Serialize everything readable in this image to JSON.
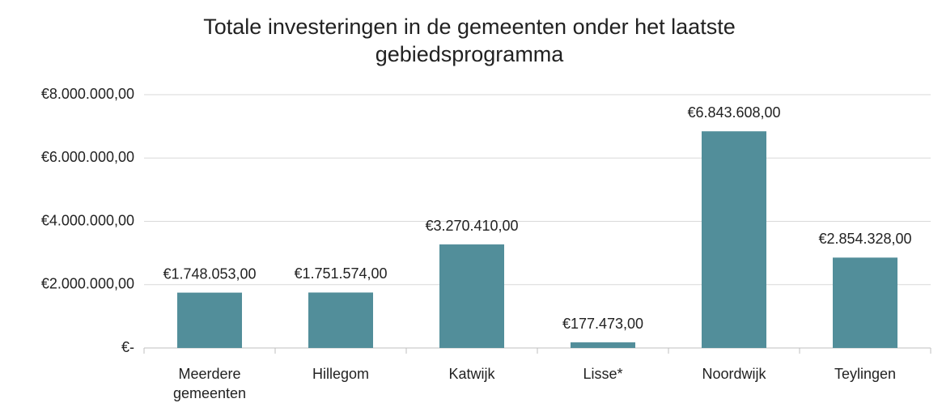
{
  "chart_data": {
    "type": "bar",
    "title": "Totale investeringen in de gemeenten onder het laatste gebiedsprogramma",
    "categories": [
      "Meerdere gemeenten",
      "Hillegom",
      "Katwijk",
      "Lisse*",
      "Noordwijk",
      "Teylingen"
    ],
    "values": [
      1748053,
      1751574,
      3270410,
      177473,
      6843608,
      2854328
    ],
    "value_labels": [
      "€1.748.053,00",
      "€1.751.574,00",
      "€3.270.410,00",
      "€177.473,00",
      "€6.843.608,00",
      "€2.854.328,00"
    ],
    "color": "#528e9a",
    "ylim": [
      0,
      8000000
    ],
    "yticks": [
      {
        "value": 0,
        "label": "€-"
      },
      {
        "value": 2000000,
        "label": "€2.000.000,00"
      },
      {
        "value": 4000000,
        "label": "€4.000.000,00"
      },
      {
        "value": 6000000,
        "label": "€6.000.000,00"
      },
      {
        "value": 8000000,
        "label": "€8.000.000,00"
      }
    ],
    "grid": true
  }
}
